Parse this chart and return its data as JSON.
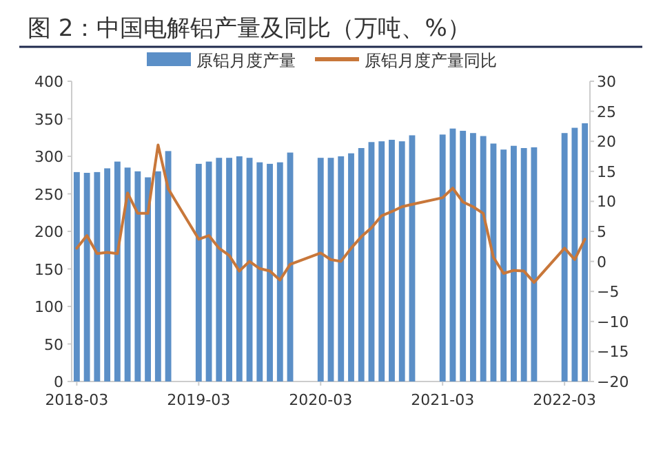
{
  "chart_data": {
    "type": "bar",
    "title": "图 2：中国电解铝产量及同比（万吨、%）",
    "categories": [
      "2018-03",
      null,
      null,
      null,
      null,
      null,
      null,
      null,
      null,
      null,
      null,
      null,
      "2019-03",
      null,
      null,
      null,
      null,
      null,
      null,
      null,
      null,
      null,
      null,
      null,
      "2020-03",
      null,
      null,
      null,
      null,
      null,
      null,
      null,
      null,
      null,
      null,
      null,
      "2021-03",
      null,
      null,
      null,
      null,
      null,
      null,
      null,
      null,
      null,
      null,
      null,
      "2022-03",
      null,
      null
    ],
    "series": [
      {
        "name": "原铝月度产量",
        "color": "#5b8fc7",
        "values": [
          279,
          278,
          279,
          284,
          293,
          285,
          280,
          272,
          280,
          307,
          null,
          null,
          290,
          293,
          298,
          298,
          300,
          298,
          292,
          290,
          292,
          305,
          null,
          null,
          298,
          298,
          300,
          304,
          311,
          319,
          320,
          322,
          320,
          328,
          null,
          null,
          329,
          337,
          334,
          331,
          327,
          317,
          309,
          314,
          311,
          312,
          null,
          null,
          331,
          338,
          344
        ]
      },
      {
        "name": "原铝月度产量同比",
        "type": "line",
        "axis": "y2",
        "color": "#c8773a",
        "values": [
          2.2,
          4.3,
          1.3,
          1.5,
          1.3,
          11.4,
          8,
          8,
          19.4,
          12.1,
          null,
          null,
          3.7,
          4.3,
          2.2,
          1.0,
          -1.6,
          0,
          -1.2,
          -1.6,
          -3.1,
          -0.5,
          null,
          null,
          1.4,
          0.3,
          0,
          2.2,
          4.1,
          5.6,
          7.6,
          8.3,
          9.1,
          9.5,
          null,
          null,
          10.6,
          12.2,
          9.9,
          9.1,
          8,
          0.7,
          -2,
          -1.5,
          -1.6,
          -3.5,
          null,
          null,
          2.2,
          0.3,
          3.7
        ]
      }
    ],
    "ylim": [
      0,
      400
    ],
    "yticks": [
      0,
      50,
      100,
      150,
      200,
      250,
      300,
      350,
      400
    ],
    "y2lim": [
      -20,
      30
    ],
    "y2ticks": [
      -20,
      -15,
      -10,
      -5,
      0,
      5,
      10,
      15,
      20,
      25,
      30
    ],
    "legend": "top"
  }
}
